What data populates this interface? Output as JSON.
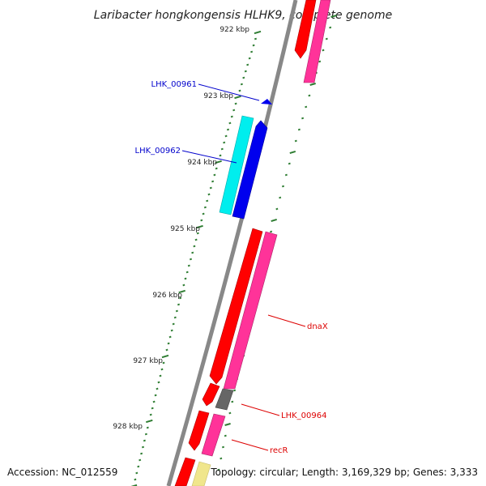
{
  "title": "Laribacter hongkongensis HLHK9, complete genome",
  "footer": {
    "accession": "Accession: NC_012559",
    "topology": "Topology: circular; Length: 3,169,329 bp; Genes: 3,333"
  },
  "ruler_labels": [
    "922 kbp",
    "923 kbp",
    "924 kbp",
    "925 kbp",
    "926 kbp",
    "927 kbp",
    "928 kbp"
  ],
  "gene_labels": [
    {
      "text": "LHK_00961",
      "color": "#0000cc"
    },
    {
      "text": "LHK_00962",
      "color": "#0000cc"
    },
    {
      "text": "dnaX",
      "color": "#dd0000"
    },
    {
      "text": "LHK_00964",
      "color": "#dd0000"
    },
    {
      "text": "recR",
      "color": "#dd0000"
    }
  ],
  "colors": {
    "backbone": "#8a8a8a",
    "cds_red": "#ff0000",
    "cds_pink": "#ff3399",
    "cds_blue": "#0000ee",
    "cds_cyan": "#00eeee",
    "cds_grey": "#666666",
    "cds_yellow": "#f0e68c",
    "tick": "#2e7d32"
  }
}
